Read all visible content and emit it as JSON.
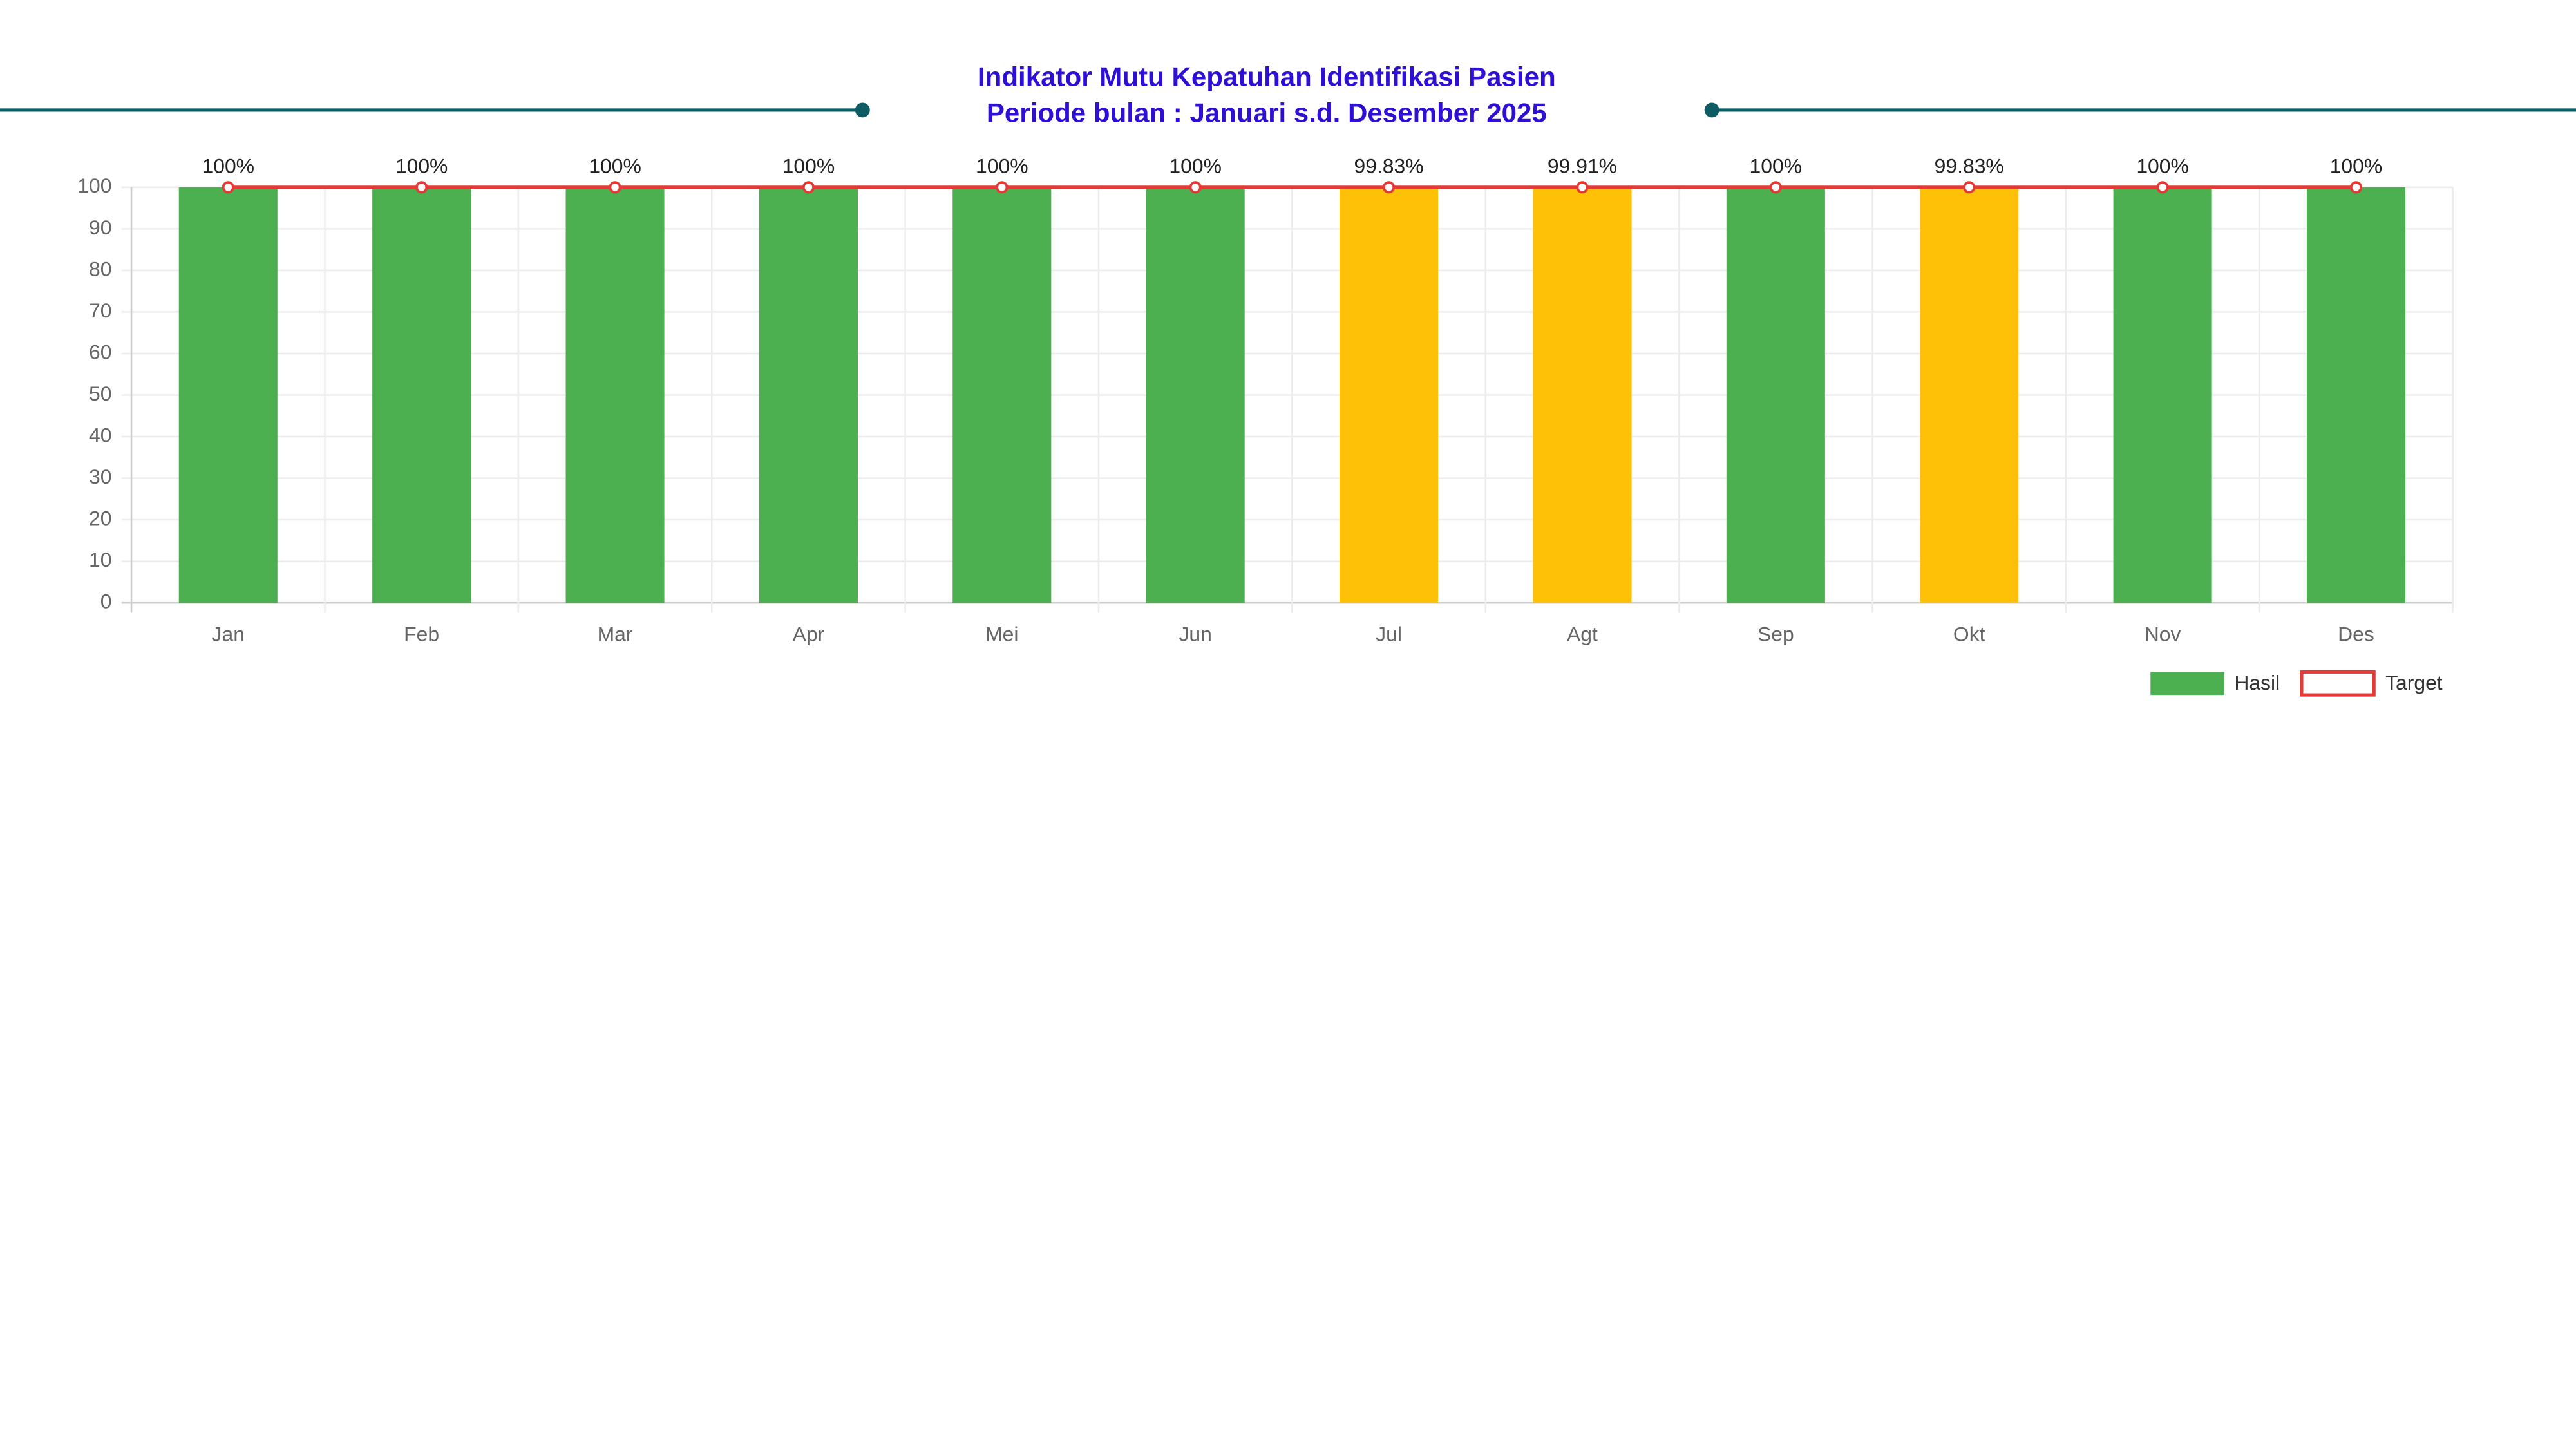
{
  "chart_data": {
    "type": "bar",
    "title": [
      "Indikator Mutu Kepatuhan Identifikasi Pasien",
      "Periode bulan : Januari s.d. Desember 2025"
    ],
    "categories": [
      "Jan",
      "Feb",
      "Mar",
      "Apr",
      "Mei",
      "Jun",
      "Jul",
      "Agt",
      "Sep",
      "Okt",
      "Nov",
      "Des"
    ],
    "series": [
      {
        "name": "Hasil",
        "type": "bar",
        "color": "#4caf50",
        "colors": [
          "#4caf50",
          "#4caf50",
          "#4caf50",
          "#4caf50",
          "#4caf50",
          "#4caf50",
          "#ffc107",
          "#ffc107",
          "#4caf50",
          "#ffc107",
          "#4caf50",
          "#4caf50"
        ],
        "values": [
          100,
          100,
          100,
          100,
          100,
          100,
          99.83,
          99.91,
          100,
          99.83,
          100,
          100
        ],
        "value_labels": [
          "100%",
          "100%",
          "100%",
          "100%",
          "100%",
          "100%",
          "99.83%",
          "99.91%",
          "100%",
          "99.83%",
          "100%",
          "100%"
        ]
      },
      {
        "name": "Target",
        "type": "line",
        "color": "#e53935",
        "values": [
          100,
          100,
          100,
          100,
          100,
          100,
          100,
          100,
          100,
          100,
          100,
          100
        ]
      }
    ],
    "ylim": [
      0,
      100
    ],
    "yticks": [
      0,
      10,
      20,
      30,
      40,
      50,
      60,
      70,
      80,
      90,
      100
    ],
    "grid": true,
    "legend": "bottom-right"
  }
}
